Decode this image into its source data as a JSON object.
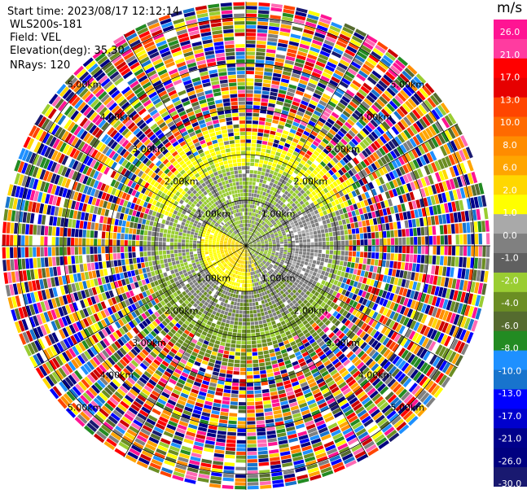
{
  "header": {
    "start_time": "Start time: 2023/08/17 12:12:14",
    "site": "WLS200s-181",
    "field": "Field: VEL",
    "elevation": "Elevation(deg): 35.30",
    "nrays": "NRays: 120"
  },
  "chart_data": {
    "type": "heatmap",
    "subtype": "radar-ppi-polar",
    "range_ring_labels": [
      "1.00km",
      "2.00km",
      "3.00km",
      "4.00km",
      "5.00km"
    ],
    "range_rings_km": [
      1,
      2,
      3,
      4,
      5
    ],
    "max_range_km": 5.35,
    "n_rays": 120,
    "n_gates": 64,
    "radial_lines_deg": [
      0,
      30,
      60,
      90,
      120,
      150,
      180,
      210,
      240,
      270,
      300,
      330
    ],
    "colorbar": {
      "unit": "m/s",
      "ticks": [
        "26.0",
        "21.0",
        "17.0",
        "13.0",
        "10.0",
        "8.0",
        "6.0",
        "2.0",
        "1.0",
        "0.0",
        "-1.0",
        "-2.0",
        "-4.0",
        "-6.0",
        "-8.0",
        "-10.0",
        "-13.0",
        "-17.0",
        "-21.0",
        "-26.0",
        "-30.0"
      ],
      "colors": [
        "#ff1493",
        "#ff3ca0",
        "#ff0000",
        "#e60000",
        "#ff4500",
        "#ff6a00",
        "#ff8c00",
        "#ffa500",
        "#ffd700",
        "#ffff00",
        "#a9a9a9",
        "#808080",
        "#606060",
        "#9acd32",
        "#6b8e23",
        "#556b2f",
        "#228b22",
        "#1e90ff",
        "#1874cd",
        "#0000ff",
        "#0000cd",
        "#00008b",
        "#000080",
        "#191970"
      ]
    },
    "velocity_structure": {
      "inner_radius_km_approx": 1.6,
      "positive_sector": "south-west of center (yellow, ~2 m/s)",
      "near_zero_ring": "gray 0 m/s band around 1.0-2.0 km",
      "negative_band": "olive/yellow-green (-2 to -4 m/s) in the northern and southern halves",
      "outer_noise_km": 2.6
    }
  }
}
